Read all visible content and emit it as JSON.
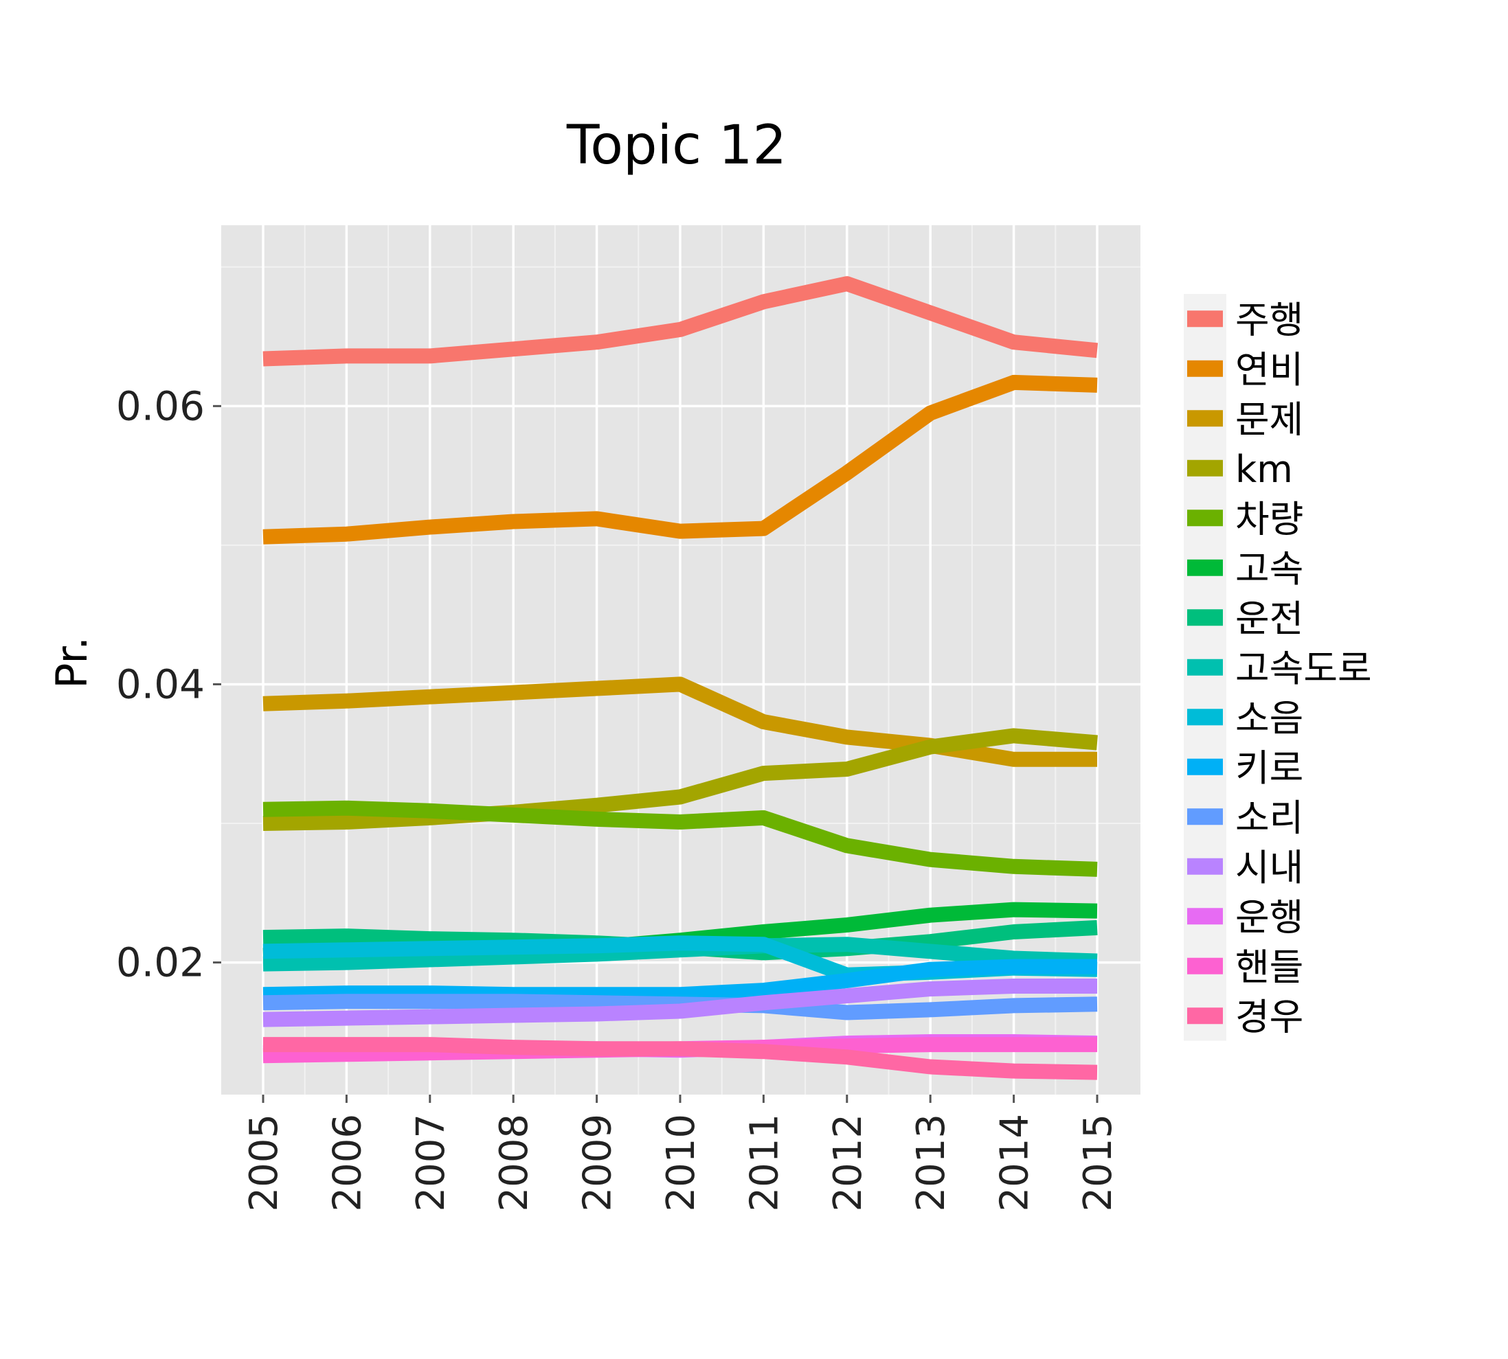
{
  "chart_data": {
    "type": "line",
    "title": "Topic 12",
    "xlabel": "",
    "ylabel": "Pr.",
    "x": [
      "2005",
      "2006",
      "2007",
      "2008",
      "2009",
      "2010",
      "2011",
      "2012",
      "2013",
      "2014",
      "2015"
    ],
    "ylim": [
      0.0105,
      0.073
    ],
    "yticks": [
      0.02,
      0.04,
      0.06
    ],
    "ytick_labels": [
      "0.02",
      "0.04",
      "0.06"
    ],
    "grid": true,
    "legend_position": "right",
    "series": [
      {
        "name": "주행",
        "color": "#F8766D",
        "values": [
          0.0634,
          0.0636,
          0.0636,
          0.0641,
          0.0646,
          0.0655,
          0.0675,
          0.0688,
          0.0667,
          0.0646,
          0.064
        ]
      },
      {
        "name": "연비",
        "color": "#E58700",
        "values": [
          0.0506,
          0.0508,
          0.0513,
          0.0517,
          0.0519,
          0.051,
          0.0512,
          0.0552,
          0.0595,
          0.0617,
          0.0615
        ]
      },
      {
        "name": "문제",
        "color": "#C99800",
        "values": [
          0.0386,
          0.0388,
          0.0391,
          0.0394,
          0.0397,
          0.04,
          0.0373,
          0.0362,
          0.0356,
          0.0346,
          0.0346
        ]
      },
      {
        "name": "km",
        "color": "#A3A500",
        "values": [
          0.03,
          0.0301,
          0.0304,
          0.0308,
          0.0313,
          0.0319,
          0.0336,
          0.0339,
          0.0355,
          0.0363,
          0.0358
        ]
      },
      {
        "name": "차량",
        "color": "#6BB100",
        "values": [
          0.031,
          0.0311,
          0.0309,
          0.0306,
          0.0303,
          0.0301,
          0.0304,
          0.0284,
          0.0274,
          0.0269,
          0.0267
        ]
      },
      {
        "name": "고속",
        "color": "#00BA38",
        "values": [
          0.0205,
          0.0207,
          0.0208,
          0.0209,
          0.0211,
          0.0216,
          0.0222,
          0.0227,
          0.0234,
          0.0238,
          0.0237
        ]
      },
      {
        "name": "운전",
        "color": "#00BF7D",
        "values": [
          0.0218,
          0.0219,
          0.0217,
          0.0216,
          0.0214,
          0.0211,
          0.0207,
          0.021,
          0.0215,
          0.0222,
          0.0225
        ]
      },
      {
        "name": "고속도로",
        "color": "#00C0AF",
        "values": [
          0.0199,
          0.02,
          0.0202,
          0.0204,
          0.0206,
          0.0209,
          0.0212,
          0.0213,
          0.0208,
          0.0203,
          0.0201
        ]
      },
      {
        "name": "소음",
        "color": "#00BCD8",
        "values": [
          0.0208,
          0.0209,
          0.021,
          0.0211,
          0.0212,
          0.0214,
          0.0213,
          0.0191,
          0.0193,
          0.0196,
          0.0195
        ]
      },
      {
        "name": "키로",
        "color": "#00B0F6",
        "values": [
          0.0177,
          0.0178,
          0.0178,
          0.0177,
          0.0177,
          0.0177,
          0.018,
          0.0187,
          0.0195,
          0.0197,
          0.0197
        ]
      },
      {
        "name": "소리",
        "color": "#619CFF",
        "values": [
          0.0171,
          0.0172,
          0.0172,
          0.0172,
          0.0171,
          0.017,
          0.0169,
          0.0164,
          0.0166,
          0.0169,
          0.017
        ]
      },
      {
        "name": "시내",
        "color": "#B983FF",
        "values": [
          0.0159,
          0.016,
          0.0161,
          0.0162,
          0.0163,
          0.0165,
          0.0171,
          0.0176,
          0.0181,
          0.0183,
          0.0183
        ]
      },
      {
        "name": "운행",
        "color": "#E76BF3",
        "values": [
          0.0135,
          0.0136,
          0.0136,
          0.0137,
          0.0138,
          0.0137,
          0.0139,
          0.0142,
          0.0143,
          0.0143,
          0.0142
        ]
      },
      {
        "name": "핸들",
        "color": "#FD61D1",
        "values": [
          0.0133,
          0.0134,
          0.0135,
          0.0136,
          0.0137,
          0.0138,
          0.0139,
          0.014,
          0.0141,
          0.0141,
          0.0141
        ]
      },
      {
        "name": "경우",
        "color": "#FF67A4",
        "values": [
          0.0141,
          0.0141,
          0.0141,
          0.0139,
          0.0138,
          0.0138,
          0.0136,
          0.0132,
          0.0125,
          0.0122,
          0.0121
        ]
      }
    ]
  }
}
